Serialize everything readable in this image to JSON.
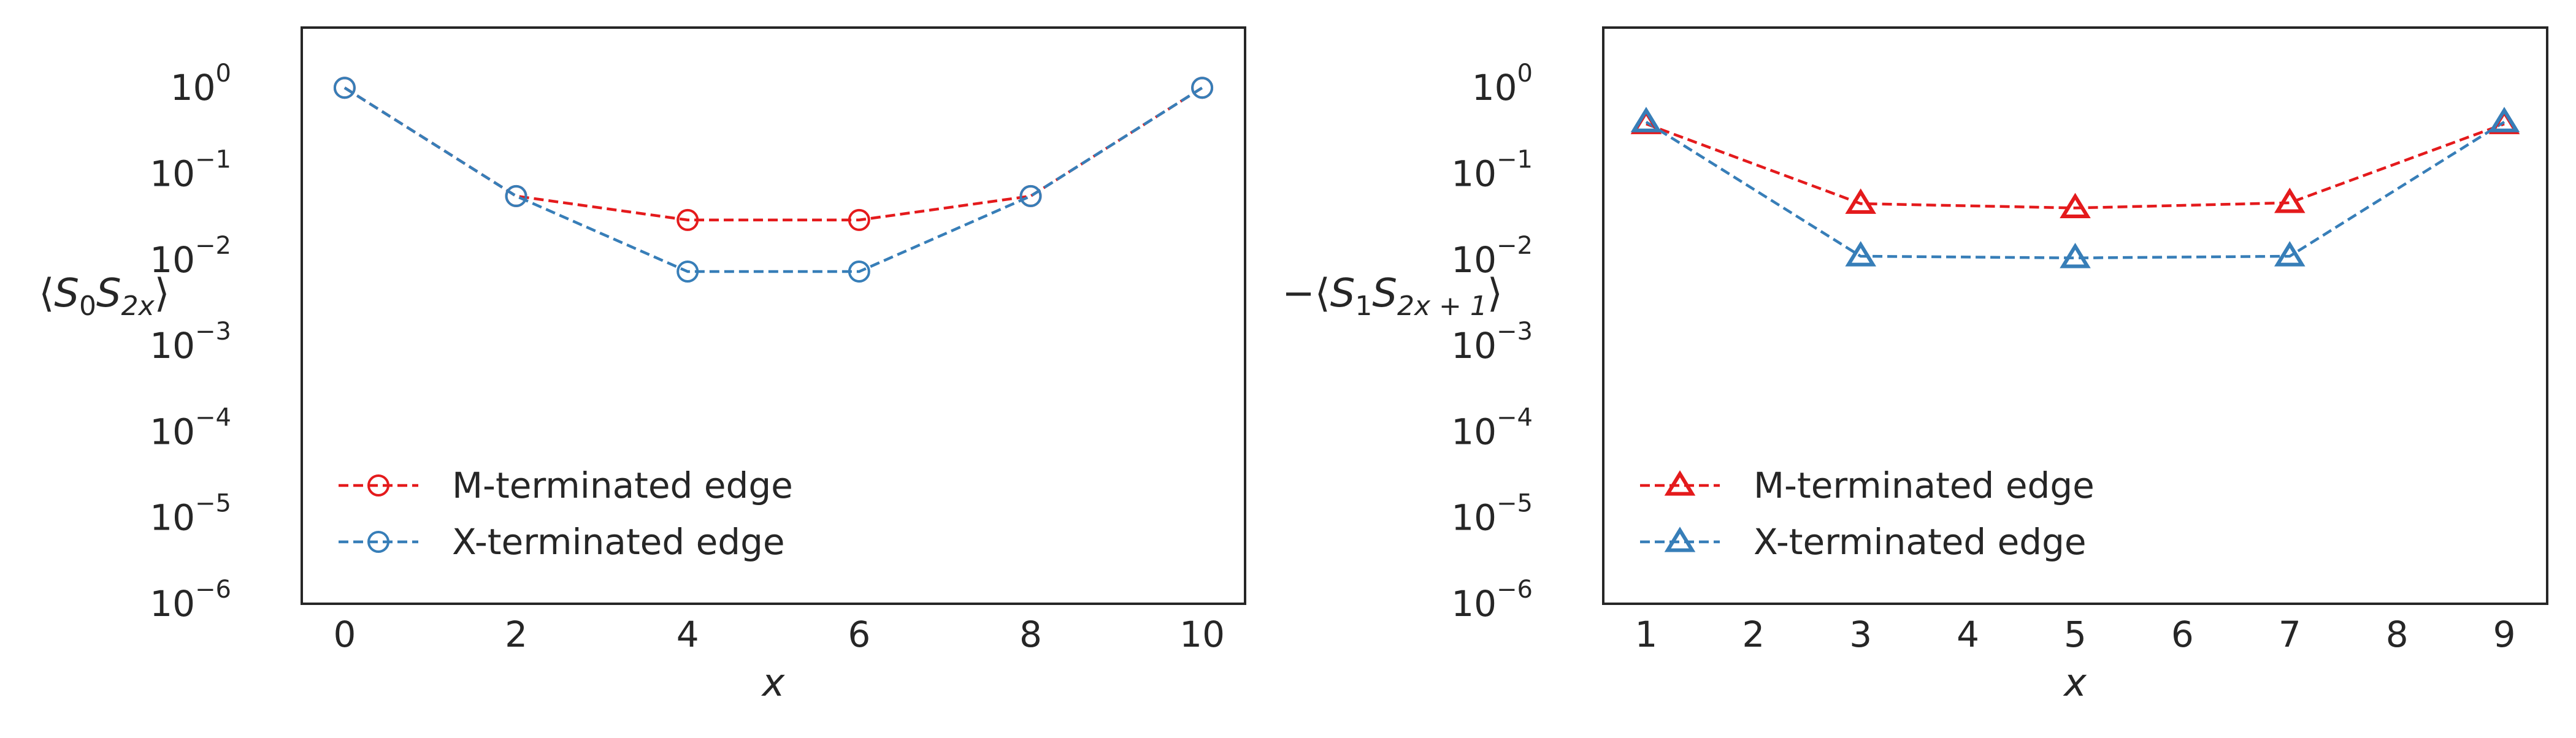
{
  "colors": {
    "red": "#e41a1c",
    "blue": "#377eb8",
    "frame": "#262626"
  },
  "charts": [
    {
      "type": "line",
      "marker": "circle",
      "ylabel": {
        "open": "⟨",
        "sym1": "S",
        "sub1": "0",
        "sym2": "S",
        "sub2": "2x",
        "close": "⟩"
      },
      "xlabel": "x",
      "xlim": [
        -0.5,
        10.5
      ],
      "ylim_log10": [
        -6,
        0.7
      ],
      "log_scale": true,
      "xticks": [
        0,
        2,
        4,
        6,
        8,
        10
      ],
      "yticks": [
        {
          "base": "10",
          "exp": "0",
          "v": 0
        },
        {
          "base": "10",
          "exp": "−1",
          "v": -1
        },
        {
          "base": "10",
          "exp": "−2",
          "v": -2
        },
        {
          "base": "10",
          "exp": "−3",
          "v": -3
        },
        {
          "base": "10",
          "exp": "−4",
          "v": -4
        },
        {
          "base": "10",
          "exp": "−5",
          "v": -5
        },
        {
          "base": "10",
          "exp": "−6",
          "v": -6
        }
      ],
      "legend_position": "lower-left",
      "series": [
        {
          "name": "M-terminated edge",
          "color": "red",
          "x": [
            0,
            2,
            4,
            6,
            8,
            10
          ],
          "y": [
            1.0,
            0.055,
            0.029,
            0.029,
            0.055,
            1.0
          ]
        },
        {
          "name": "X-terminated edge",
          "color": "blue",
          "x": [
            0,
            2,
            4,
            6,
            8,
            10
          ],
          "y": [
            1.0,
            0.055,
            0.0073,
            0.0073,
            0.055,
            1.0
          ]
        }
      ]
    },
    {
      "type": "line",
      "marker": "triangle",
      "ylabel": {
        "open": "−⟨",
        "sym1": "S",
        "sub1": "1",
        "sym2": "S",
        "sub2": "2x + 1",
        "close": "⟩"
      },
      "xlabel": "x",
      "xlim": [
        0.6,
        9.4
      ],
      "ylim_log10": [
        -6,
        0.7
      ],
      "log_scale": true,
      "xticks": [
        1,
        2,
        3,
        4,
        5,
        6,
        7,
        8,
        9
      ],
      "yticks": [
        {
          "base": "10",
          "exp": "0",
          "v": 0
        },
        {
          "base": "10",
          "exp": "−1",
          "v": -1
        },
        {
          "base": "10",
          "exp": "−2",
          "v": -2
        },
        {
          "base": "10",
          "exp": "−3",
          "v": -3
        },
        {
          "base": "10",
          "exp": "−4",
          "v": -4
        },
        {
          "base": "10",
          "exp": "−5",
          "v": -5
        },
        {
          "base": "10",
          "exp": "−6",
          "v": -6
        }
      ],
      "legend_position": "lower-left",
      "series": [
        {
          "name": "M-terminated edge",
          "color": "red",
          "x": [
            1,
            3,
            5,
            7,
            9
          ],
          "y": [
            0.38,
            0.045,
            0.04,
            0.046,
            0.38
          ]
        },
        {
          "name": "X-terminated edge",
          "color": "blue",
          "x": [
            1,
            3,
            5,
            7,
            9
          ],
          "y": [
            0.4,
            0.011,
            0.0105,
            0.011,
            0.4
          ]
        }
      ]
    }
  ]
}
